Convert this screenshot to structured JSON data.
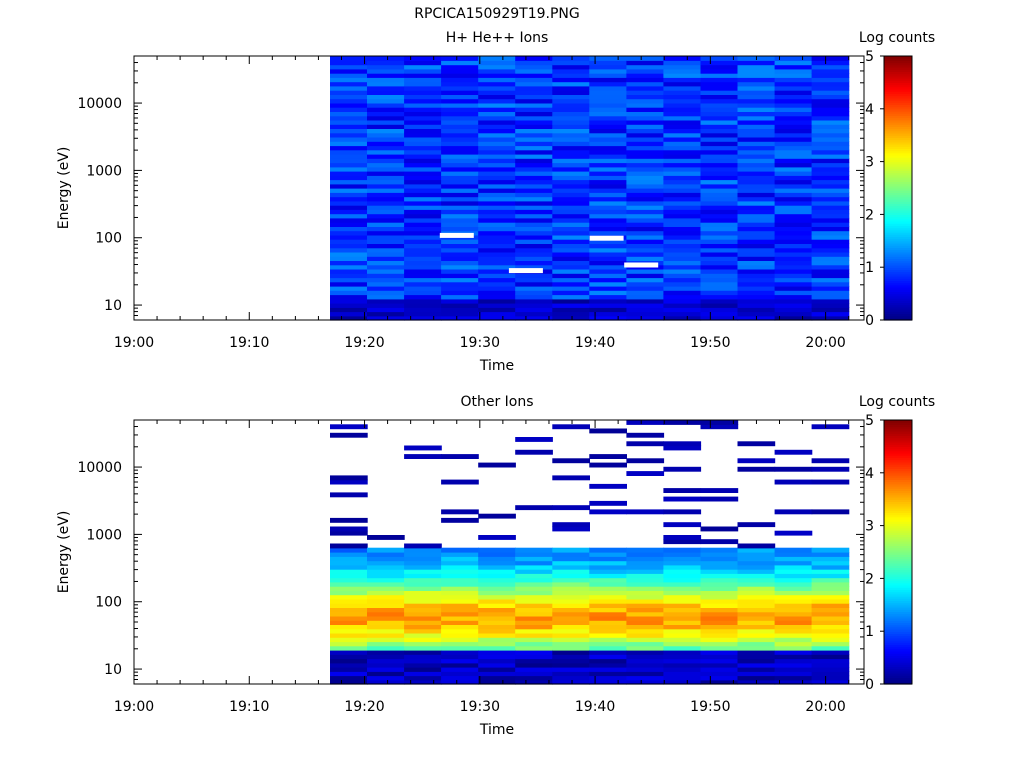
{
  "figure": {
    "filename": "RPCICA150929T19.PNG"
  },
  "chart_data": [
    {
      "type": "heatmap",
      "title": "H+ He++ Ions",
      "xlabel": "Time",
      "ylabel": "Energy (eV)",
      "xticks": [
        "19:00",
        "19:10",
        "19:20",
        "19:30",
        "19:40",
        "19:50",
        "20:00"
      ],
      "yscale": "log",
      "ylim": [
        6,
        50000
      ],
      "yticks": [
        "10",
        "100",
        "1000",
        "10000"
      ],
      "colorbar": {
        "label": "Log counts",
        "min": 0,
        "max": 5,
        "ticks": [
          "0",
          "1",
          "2",
          "3",
          "4",
          "5"
        ]
      },
      "colormap": [
        "#000080",
        "#0000ff",
        "#0080ff",
        "#00ffff",
        "#80ff80",
        "#ffff00",
        "#ff8000",
        "#ff0000",
        "#800000"
      ],
      "time_range": [
        "19:17",
        "20:02"
      ],
      "description_values": "Log counts mostly 0.2–1.3 across 5–45000 eV",
      "gaps": [
        {
          "time": "19:28",
          "energy": 110
        },
        {
          "time": "19:34",
          "energy": 33
        },
        {
          "time": "19:41",
          "energy": 100
        },
        {
          "time": "19:44",
          "energy": 40
        }
      ]
    },
    {
      "type": "heatmap",
      "title": "Other Ions",
      "xlabel": "Time",
      "ylabel": "Energy (eV)",
      "xticks": [
        "19:00",
        "19:10",
        "19:20",
        "19:30",
        "19:40",
        "19:50",
        "20:00"
      ],
      "yscale": "log",
      "ylim": [
        6,
        50000
      ],
      "yticks": [
        "10",
        "100",
        "1000",
        "10000"
      ],
      "colorbar": {
        "label": "Log counts",
        "min": 0,
        "max": 5,
        "ticks": [
          "0",
          "1",
          "2",
          "3",
          "4",
          "5"
        ]
      },
      "colormap": [
        "#000080",
        "#0000ff",
        "#0080ff",
        "#00ffff",
        "#80ff80",
        "#ffff00",
        "#ff8000",
        "#ff0000",
        "#800000"
      ],
      "time_range": [
        "19:17",
        "20:02"
      ],
      "peak_energy_eV": 60,
      "peak_log_counts": 3.4,
      "description_values": "Ion band 15–500 eV peaking near 50–80 eV (log counts ~3); sparse low counts above 1 keV"
    }
  ]
}
